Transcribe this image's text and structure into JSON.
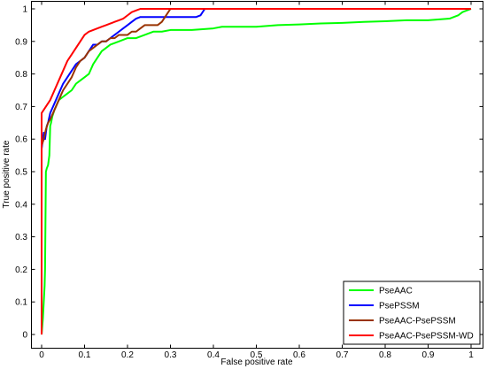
{
  "chart_data": {
    "type": "line",
    "xlabel": "False positive rate",
    "ylabel": "True positive rate",
    "xlim": [
      0,
      1
    ],
    "ylim": [
      0,
      1
    ],
    "grid": false,
    "legend_position": "bottom-right",
    "x_ticks": [
      0,
      0.1,
      0.2,
      0.3,
      0.4,
      0.5,
      0.6,
      0.7,
      0.8,
      0.9,
      1
    ],
    "x_tick_labels": [
      "0",
      "0.1",
      "0.2",
      "0.3",
      "0.4",
      "0.5",
      "0.6",
      "0.7",
      "0.8",
      "0.9",
      "1"
    ],
    "y_ticks": [
      0,
      0.1,
      0.2,
      0.3,
      0.4,
      0.5,
      0.6,
      0.7,
      0.8,
      0.9,
      1
    ],
    "y_tick_labels": [
      "0",
      "0.1",
      "0.2",
      "0.3",
      "0.4",
      "0.5",
      "0.6",
      "0.7",
      "0.8",
      "0.9",
      "1"
    ],
    "series": [
      {
        "name": "PseAAC",
        "color": "#00ff00",
        "x": [
          0,
          0.003,
          0.005,
          0.007,
          0.008,
          0.01,
          0.012,
          0.015,
          0.018,
          0.02,
          0.022,
          0.025,
          0.03,
          0.04,
          0.05,
          0.06,
          0.07,
          0.08,
          0.09,
          0.1,
          0.11,
          0.12,
          0.13,
          0.14,
          0.15,
          0.16,
          0.18,
          0.2,
          0.22,
          0.24,
          0.26,
          0.28,
          0.3,
          0.35,
          0.4,
          0.42,
          0.5,
          0.55,
          0.6,
          0.65,
          0.7,
          0.75,
          0.8,
          0.85,
          0.9,
          0.95,
          0.97,
          0.98,
          1
        ],
        "y": [
          0,
          0.05,
          0.1,
          0.15,
          0.2,
          0.5,
          0.51,
          0.52,
          0.55,
          0.64,
          0.65,
          0.67,
          0.69,
          0.72,
          0.73,
          0.74,
          0.75,
          0.77,
          0.78,
          0.79,
          0.8,
          0.83,
          0.85,
          0.87,
          0.88,
          0.89,
          0.9,
          0.91,
          0.91,
          0.92,
          0.93,
          0.93,
          0.935,
          0.935,
          0.94,
          0.945,
          0.945,
          0.95,
          0.952,
          0.955,
          0.957,
          0.96,
          0.962,
          0.965,
          0.965,
          0.97,
          0.98,
          0.99,
          1
        ]
      },
      {
        "name": "PsePSSM",
        "color": "#0000ff",
        "x": [
          0,
          0,
          0.005,
          0.008,
          0.01,
          0.012,
          0.015,
          0.02,
          0.03,
          0.04,
          0.05,
          0.06,
          0.07,
          0.08,
          0.09,
          0.1,
          0.11,
          0.12,
          0.13,
          0.14,
          0.15,
          0.16,
          0.17,
          0.18,
          0.19,
          0.2,
          0.21,
          0.22,
          0.23,
          0.25,
          0.26,
          0.28,
          0.3,
          0.32,
          0.34,
          0.36,
          0.37,
          0.38,
          0.4,
          0.5,
          0.6,
          0.7,
          0.8,
          0.9,
          1
        ],
        "y": [
          0,
          0.57,
          0.62,
          0.6,
          0.62,
          0.64,
          0.65,
          0.68,
          0.71,
          0.74,
          0.77,
          0.79,
          0.81,
          0.83,
          0.84,
          0.85,
          0.87,
          0.89,
          0.89,
          0.9,
          0.9,
          0.91,
          0.92,
          0.93,
          0.94,
          0.95,
          0.96,
          0.97,
          0.975,
          0.975,
          0.975,
          0.975,
          0.975,
          0.975,
          0.975,
          0.975,
          0.98,
          1,
          1,
          1,
          1,
          1,
          1,
          1,
          1
        ]
      },
      {
        "name": "PseAAC-PsePSSM",
        "color": "#993300",
        "x": [
          0,
          0,
          0.005,
          0.01,
          0.015,
          0.02,
          0.03,
          0.04,
          0.05,
          0.06,
          0.07,
          0.08,
          0.09,
          0.1,
          0.11,
          0.12,
          0.13,
          0.14,
          0.15,
          0.16,
          0.17,
          0.18,
          0.19,
          0.2,
          0.21,
          0.22,
          0.23,
          0.24,
          0.25,
          0.26,
          0.27,
          0.28,
          0.29,
          0.3,
          0.31,
          0.4,
          0.5,
          0.6,
          0.7,
          0.8,
          0.9,
          1
        ],
        "y": [
          0,
          0.58,
          0.6,
          0.63,
          0.65,
          0.66,
          0.69,
          0.72,
          0.75,
          0.77,
          0.79,
          0.82,
          0.84,
          0.85,
          0.87,
          0.88,
          0.89,
          0.9,
          0.9,
          0.91,
          0.91,
          0.92,
          0.92,
          0.92,
          0.93,
          0.93,
          0.94,
          0.95,
          0.95,
          0.95,
          0.95,
          0.96,
          0.98,
          1,
          1,
          1,
          1,
          1,
          1,
          1,
          1,
          1
        ]
      },
      {
        "name": "PseAAC-PsePSSM-WD",
        "color": "#ff0000",
        "x": [
          0,
          0,
          0.01,
          0.02,
          0.03,
          0.04,
          0.05,
          0.06,
          0.07,
          0.08,
          0.09,
          0.1,
          0.11,
          0.12,
          0.13,
          0.14,
          0.15,
          0.16,
          0.17,
          0.18,
          0.19,
          0.2,
          0.21,
          0.22,
          0.23,
          0.3,
          0.4,
          0.5,
          0.6,
          0.7,
          0.8,
          0.9,
          1
        ],
        "y": [
          0,
          0.68,
          0.7,
          0.72,
          0.75,
          0.78,
          0.81,
          0.84,
          0.86,
          0.88,
          0.9,
          0.92,
          0.93,
          0.935,
          0.94,
          0.945,
          0.95,
          0.955,
          0.96,
          0.965,
          0.97,
          0.98,
          0.99,
          0.995,
          1,
          1,
          1,
          1,
          1,
          1,
          1,
          1,
          1
        ]
      }
    ]
  }
}
